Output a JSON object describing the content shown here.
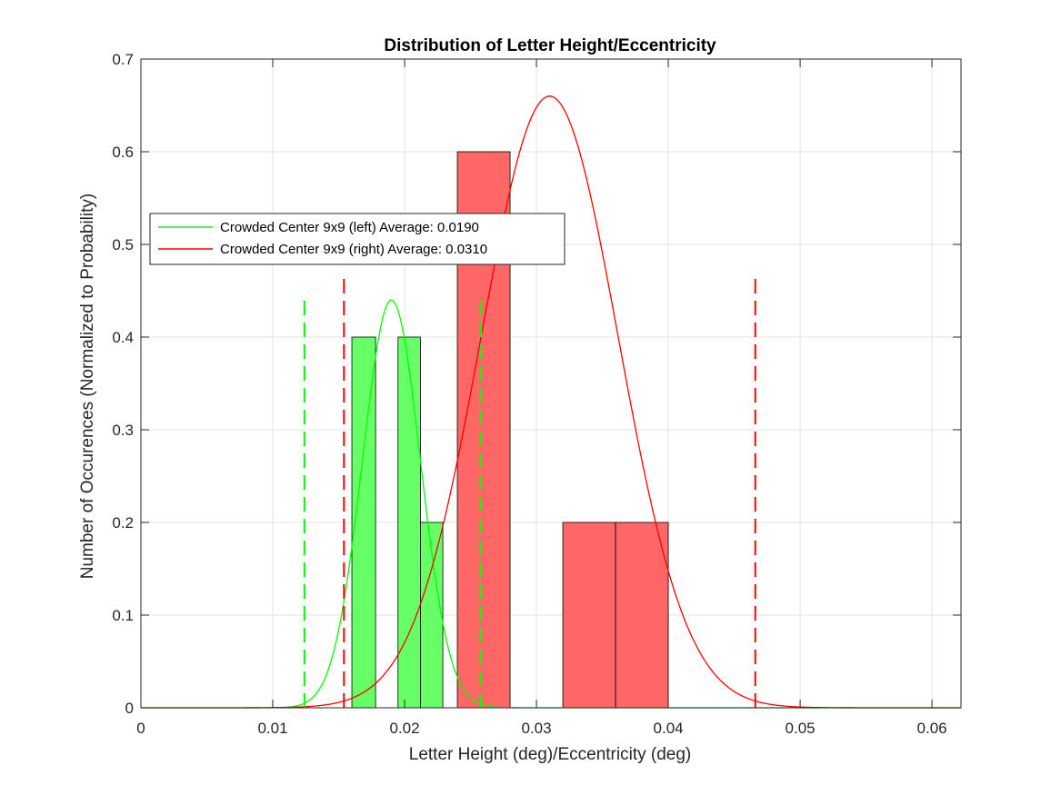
{
  "chart_data": {
    "type": "bar",
    "title": "Distribution of Letter Height/Eccentricity",
    "xlabel": "Letter Height (deg)/Eccentricity (deg)",
    "ylabel": "Number of Occurences (Normalized to Probability)",
    "xlim": [
      0,
      0.0622
    ],
    "ylim": [
      0,
      0.7
    ],
    "x_ticks": [
      0,
      0.01,
      0.02,
      0.03,
      0.04,
      0.05,
      0.06
    ],
    "x_tick_labels": [
      "0",
      "0.01",
      "0.02",
      "0.03",
      "0.04",
      "0.05",
      "0.06"
    ],
    "y_ticks": [
      0,
      0.1,
      0.2,
      0.3,
      0.4,
      0.5,
      0.6,
      0.7
    ],
    "y_tick_labels": [
      "0",
      "0.1",
      "0.2",
      "0.3",
      "0.4",
      "0.5",
      "0.6",
      "0.7"
    ],
    "grid": true,
    "legend_position": "upper-left",
    "series": [
      {
        "name": "Crowded Center 9x9 (left) Average: 0.0190",
        "color": "#00ff00",
        "bar_color": "#66ff66",
        "bins": [
          {
            "x0": 0.016,
            "x1": 0.0178,
            "value": 0.4
          },
          {
            "x0": 0.0195,
            "x1": 0.0212,
            "value": 0.4
          },
          {
            "x0": 0.0212,
            "x1": 0.0229,
            "value": 0.2
          }
        ],
        "curve": {
          "mean": 0.019,
          "peak": 0.44,
          "sd": 0.0022
        },
        "dashed_lines": [
          0.0124,
          0.0258
        ],
        "dashed_top": 0.44
      },
      {
        "name": "Crowded Center 9x9 (right) Average: 0.0310",
        "color": "#ff0000",
        "bar_color": "#ff6666",
        "bins": [
          {
            "x0": 0.024,
            "x1": 0.028,
            "value": 0.6
          },
          {
            "x0": 0.032,
            "x1": 0.036,
            "value": 0.2
          },
          {
            "x0": 0.036,
            "x1": 0.04,
            "value": 0.2
          }
        ],
        "curve": {
          "mean": 0.031,
          "peak": 0.66,
          "sd": 0.0052
        },
        "dashed_lines": [
          0.0154,
          0.0466
        ],
        "dashed_top": 0.47
      }
    ]
  }
}
